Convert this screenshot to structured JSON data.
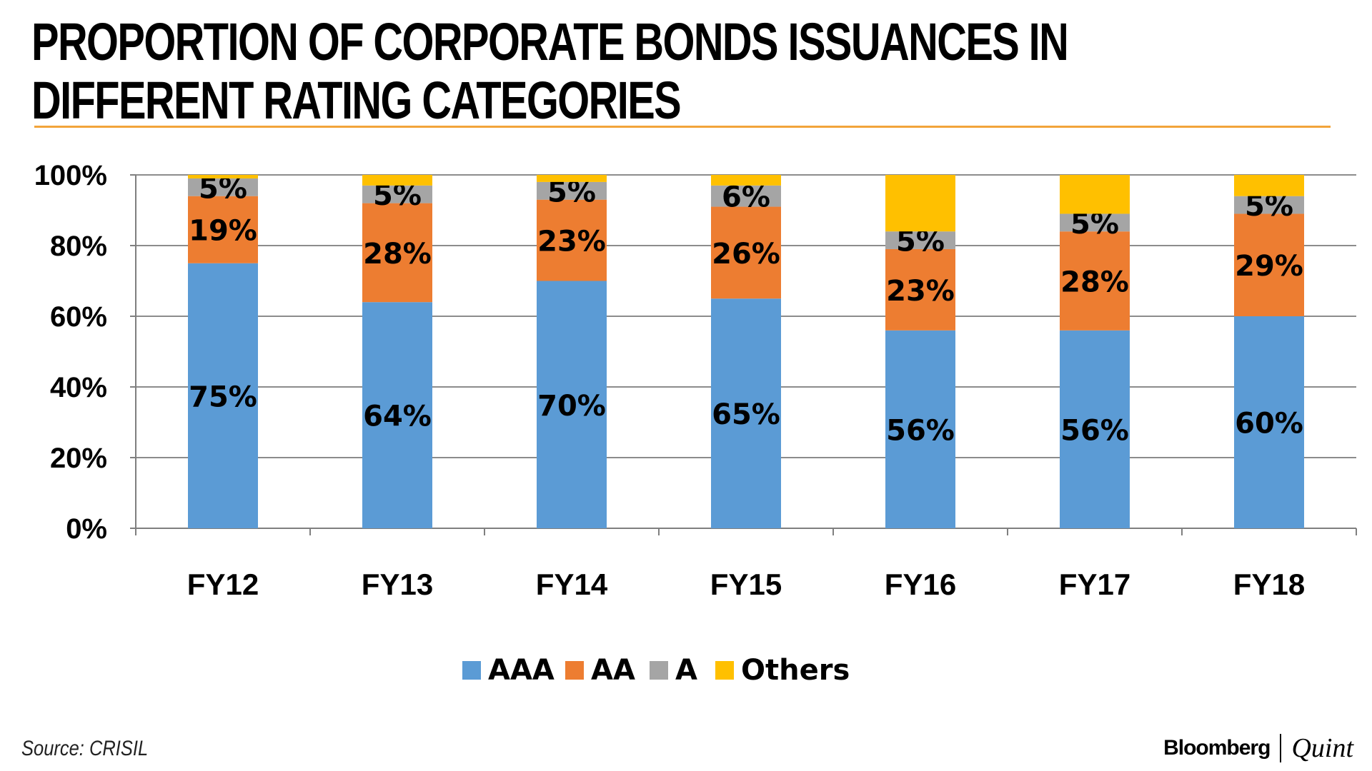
{
  "title": "PROPORTION OF CORPORATE BONDS ISSUANCES IN DIFFERENT RATING CATEGORIES",
  "title_line1": "PROPORTION OF CORPORATE BONDS ISSUANCES IN",
  "title_line2": "DIFFERENT RATING CATEGORIES",
  "source": "Source: CRISIL",
  "brand": {
    "left": "Bloomberg",
    "right": "Quint"
  },
  "colors": {
    "AAA": "#5b9bd5",
    "AA": "#ed7d31",
    "A": "#a5a5a5",
    "Others": "#ffc000",
    "rule": "#f2a43a",
    "grid": "#8c8c8c"
  },
  "chart_data": {
    "type": "bar",
    "stacked": true,
    "title": "PROPORTION OF CORPORATE BONDS ISSUANCES IN DIFFERENT RATING CATEGORIES",
    "categories": [
      "FY12",
      "FY13",
      "FY14",
      "FY15",
      "FY16",
      "FY17",
      "FY18"
    ],
    "series": [
      {
        "name": "AAA",
        "values": [
          75,
          64,
          70,
          65,
          56,
          56,
          60
        ]
      },
      {
        "name": "AA",
        "values": [
          19,
          28,
          23,
          26,
          23,
          28,
          29
        ]
      },
      {
        "name": "A",
        "values": [
          5,
          5,
          5,
          6,
          5,
          5,
          5
        ]
      },
      {
        "name": "Others",
        "values": [
          1,
          3,
          2,
          3,
          16,
          11,
          6
        ]
      }
    ],
    "labeled_series": [
      "AAA",
      "AA",
      "A"
    ],
    "value_suffix": "%",
    "ylim": [
      0,
      100
    ],
    "yticks": [
      0,
      20,
      40,
      60,
      80,
      100
    ],
    "ytick_labels": [
      "0%",
      "20%",
      "40%",
      "60%",
      "80%",
      "100%"
    ],
    "xlabel": "",
    "ylabel": "",
    "grid": true,
    "legend": [
      "AAA",
      "AA",
      "A",
      "Others"
    ],
    "legend_position": "bottom"
  }
}
